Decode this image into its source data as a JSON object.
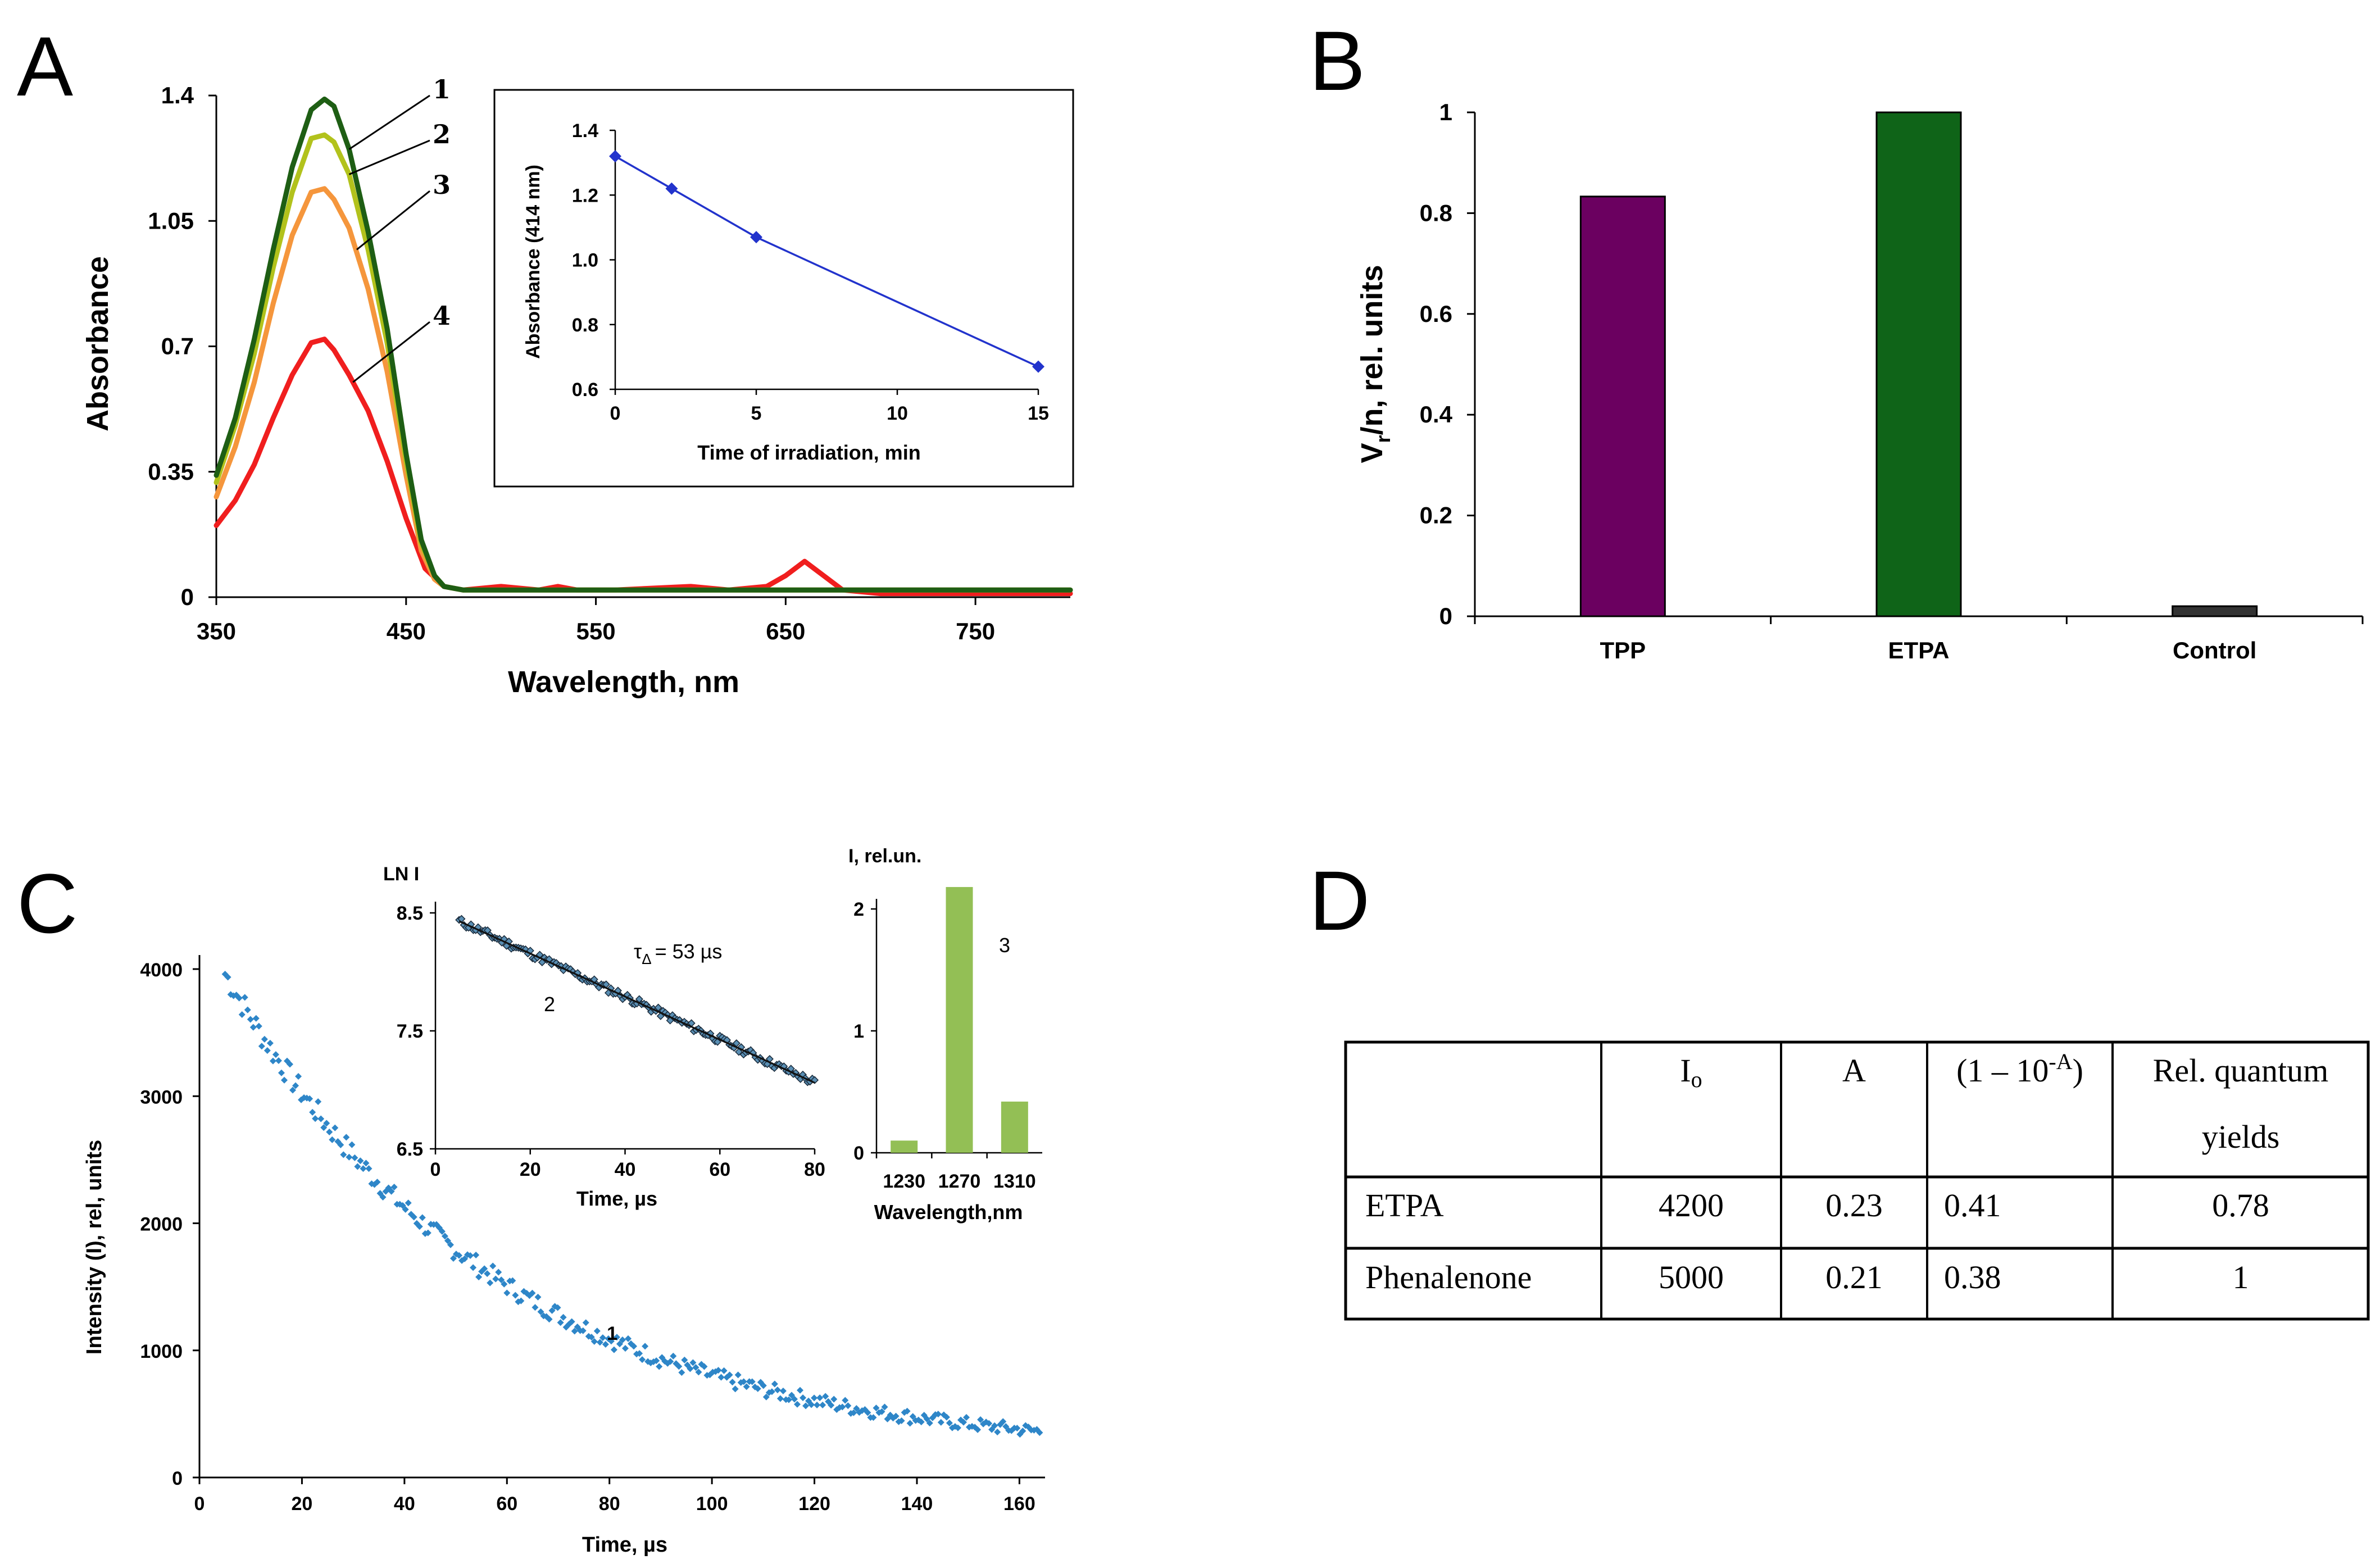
{
  "panels": {
    "a": "A",
    "b": "B",
    "c": "C",
    "d": "D"
  },
  "colors": {
    "curve1": "#1e5e14",
    "curve2": "#b2c21c",
    "curve3": "#f5963c",
    "curve4": "#f01e1e",
    "inset_line": "#2233cc",
    "tpp_bar": "#6b0060",
    "etpa_bar": "#0f6418",
    "control_bar": "#333333",
    "decay_points": "#2e86c8",
    "ln_points": "#5a8fb4",
    "spectrum_bars": "#93bf55"
  },
  "chart_data": [
    {
      "id": "A",
      "type": "line",
      "xlabel": "Wavelength, nm",
      "ylabel": "Absorbance",
      "xlim": [
        350,
        800
      ],
      "ylim": [
        0,
        1.4
      ],
      "xticks": [
        "350",
        "450",
        "550",
        "650",
        "750"
      ],
      "yticks": [
        "0",
        "0.35",
        "0.7",
        "1.05",
        "1.4"
      ],
      "series": [
        {
          "name": "1",
          "x": [
            350,
            360,
            370,
            380,
            390,
            400,
            407,
            412,
            420,
            430,
            440,
            450,
            458,
            465,
            470,
            480,
            500,
            550,
            600,
            650,
            700,
            800
          ],
          "y": [
            0.34,
            0.5,
            0.72,
            0.97,
            1.2,
            1.36,
            1.39,
            1.37,
            1.25,
            1.02,
            0.75,
            0.4,
            0.16,
            0.06,
            0.03,
            0.02,
            0.02,
            0.02,
            0.02,
            0.02,
            0.02,
            0.02
          ]
        },
        {
          "name": "2",
          "x": [
            350,
            360,
            370,
            380,
            390,
            400,
            407,
            412,
            420,
            430,
            440,
            450,
            458,
            465,
            470,
            480,
            500,
            550,
            600,
            650,
            700,
            800
          ],
          "y": [
            0.32,
            0.48,
            0.68,
            0.92,
            1.13,
            1.28,
            1.29,
            1.27,
            1.18,
            0.97,
            0.71,
            0.38,
            0.15,
            0.06,
            0.03,
            0.02,
            0.02,
            0.02,
            0.02,
            0.02,
            0.02,
            0.02
          ]
        },
        {
          "name": "3",
          "x": [
            350,
            360,
            370,
            380,
            390,
            400,
            407,
            412,
            420,
            430,
            440,
            450,
            458,
            465,
            470,
            480,
            500,
            550,
            600,
            650,
            700,
            800
          ],
          "y": [
            0.28,
            0.42,
            0.6,
            0.82,
            1.01,
            1.13,
            1.14,
            1.11,
            1.03,
            0.86,
            0.63,
            0.34,
            0.13,
            0.05,
            0.03,
            0.02,
            0.02,
            0.02,
            0.02,
            0.02,
            0.02,
            0.02
          ]
        },
        {
          "name": "4",
          "x": [
            350,
            360,
            370,
            380,
            390,
            400,
            407,
            412,
            420,
            430,
            440,
            450,
            460,
            470,
            480,
            500,
            520,
            530,
            540,
            560,
            600,
            620,
            640,
            650,
            660,
            670,
            680,
            700,
            800
          ],
          "y": [
            0.2,
            0.27,
            0.37,
            0.5,
            0.62,
            0.71,
            0.72,
            0.69,
            0.62,
            0.52,
            0.38,
            0.22,
            0.08,
            0.03,
            0.02,
            0.03,
            0.02,
            0.03,
            0.02,
            0.02,
            0.03,
            0.02,
            0.03,
            0.06,
            0.1,
            0.06,
            0.02,
            0.01,
            0.01
          ]
        }
      ],
      "curve_labels": [
        "1",
        "2",
        "3",
        "4"
      ]
    },
    {
      "id": "A-inset",
      "type": "line",
      "xlabel": "Time of irradiation, min",
      "ylabel": "Absorbance (414 nm)",
      "xlim": [
        0,
        15
      ],
      "ylim": [
        0.6,
        1.4
      ],
      "xticks": [
        "0",
        "5",
        "10",
        "15"
      ],
      "yticks": [
        "0.6",
        "0.8",
        "1.0",
        "1.2",
        "1.4"
      ],
      "x": [
        0,
        2,
        5,
        15
      ],
      "y": [
        1.32,
        1.22,
        1.07,
        0.67
      ]
    },
    {
      "id": "B",
      "type": "bar",
      "ylabel": "Vr/n, rel. units",
      "ylabel_main": "V",
      "ylabel_sub": "r",
      "ylabel_rest": "/n, rel. units",
      "categories": [
        "TPP",
        "ETPA",
        "Control"
      ],
      "values": [
        0.833,
        1.0,
        0.02
      ],
      "ylim": [
        0,
        1
      ],
      "yticks": [
        "0",
        "0.2",
        "0.4",
        "0.6",
        "0.8",
        "1"
      ]
    },
    {
      "id": "C",
      "type": "scatter",
      "xlabel": "Time, µs",
      "ylabel": "Intensity (I), rel, units",
      "xlim": [
        0,
        165
      ],
      "ylim": [
        0,
        4000
      ],
      "xticks": [
        "0",
        "20",
        "40",
        "60",
        "80",
        "100",
        "120",
        "140",
        "160"
      ],
      "yticks": [
        "0",
        "1000",
        "2000",
        "3000",
        "4000"
      ],
      "model": {
        "amplitude": 4200,
        "tau": 53,
        "t_start": 5,
        "t_end": 164
      },
      "curve_label": "1"
    },
    {
      "id": "C-inset-ln",
      "type": "scatter",
      "xlabel": "Time, µs",
      "ylabel": "LN I",
      "xlim": [
        0,
        80
      ],
      "ylim": [
        6.5,
        8.6
      ],
      "xticks": [
        "0",
        "20",
        "40",
        "60",
        "80"
      ],
      "yticks": [
        "6.5",
        "7.5",
        "8.5"
      ],
      "fit": {
        "x": [
          5,
          80
        ],
        "y": [
          8.43,
          7.06
        ]
      },
      "tau_text": "= 53 µs",
      "tau_symbol": "τ",
      "tau_sub": "Δ",
      "curve_label": "2"
    },
    {
      "id": "C-inset-spectrum",
      "type": "bar",
      "xlabel": "Wavelength,nm",
      "ylabel": "I, rel.un.",
      "categories": [
        "1230",
        "1270",
        "1310"
      ],
      "values": [
        0.1,
        2.18,
        0.42
      ],
      "ylim": [
        0,
        2.3
      ],
      "yticks": [
        "0",
        "1",
        "2"
      ],
      "curve_label": "3"
    },
    {
      "id": "D",
      "type": "table",
      "headers": [
        "",
        "Io",
        "A",
        "(1 – 10-A)",
        "Rel. quantum yields"
      ],
      "header_io_main": "I",
      "header_io_sub": "o",
      "header_pow_base": "(1 – 10",
      "header_pow_exp": "-A",
      "header_pow_close": ")",
      "header_rel_line1": "Rel. quantum",
      "header_rel_line2": "yields",
      "rows": [
        [
          "ETPA",
          "4200",
          "0.23",
          "0.41",
          "0.78"
        ],
        [
          "Phenalenone",
          "5000",
          "0.21",
          "0.38",
          "1"
        ]
      ]
    }
  ]
}
